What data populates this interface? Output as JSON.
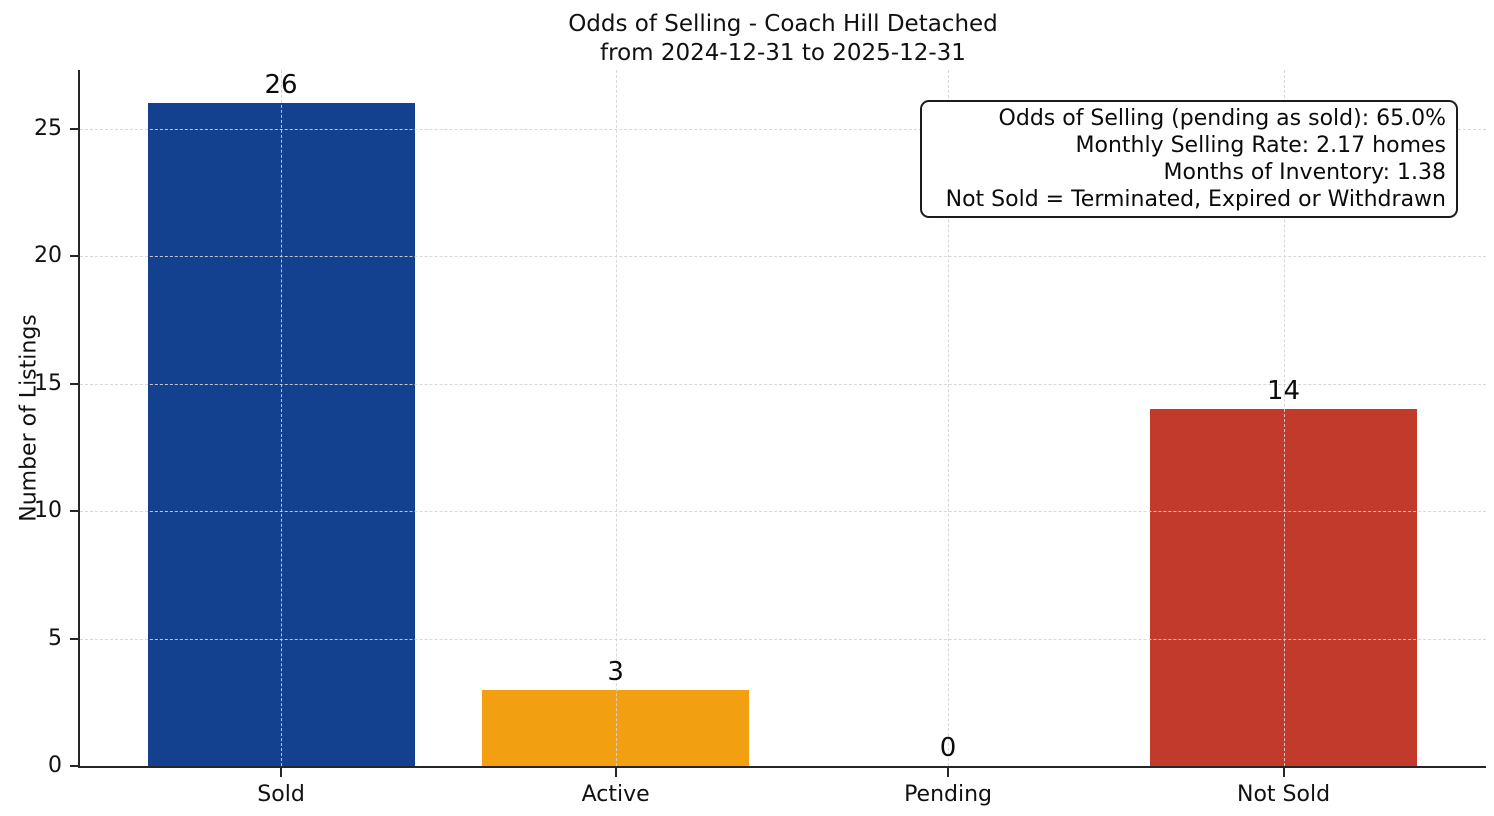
{
  "chart_data": {
    "type": "bar",
    "title": "Odds of Selling - Coach Hill Detached",
    "subtitle": "from 2024-12-31 to 2025-12-31",
    "categories": [
      "Sold",
      "Active",
      "Pending",
      "Not Sold"
    ],
    "values": [
      26,
      3,
      0,
      14
    ],
    "value_labels": [
      "26",
      "3",
      "0",
      "14"
    ],
    "bar_colors": [
      "#134190",
      "#f2a012",
      null,
      "#c13a2c"
    ],
    "xlabel": "",
    "ylabel": "Number of Listings",
    "yticks": [
      0,
      5,
      10,
      15,
      20,
      25
    ],
    "ylim": [
      0,
      27.3
    ],
    "grid": {
      "style": "dashed",
      "axes": "both",
      "color": "#d4d4d4",
      "drawn_over_bars": true
    },
    "legend": "none",
    "axis_color": "#262626",
    "background": "#ffffff",
    "annotation_box": {
      "position": "top-right",
      "text_align": "right",
      "border_color": "#1c1c1c",
      "lines": [
        "Odds of Selling (pending as sold): 65.0%",
        "Monthly Selling Rate: 2.17 homes",
        "Months of Inventory: 1.38",
        "Not Sold = Terminated, Expired or Withdrawn"
      ]
    }
  }
}
